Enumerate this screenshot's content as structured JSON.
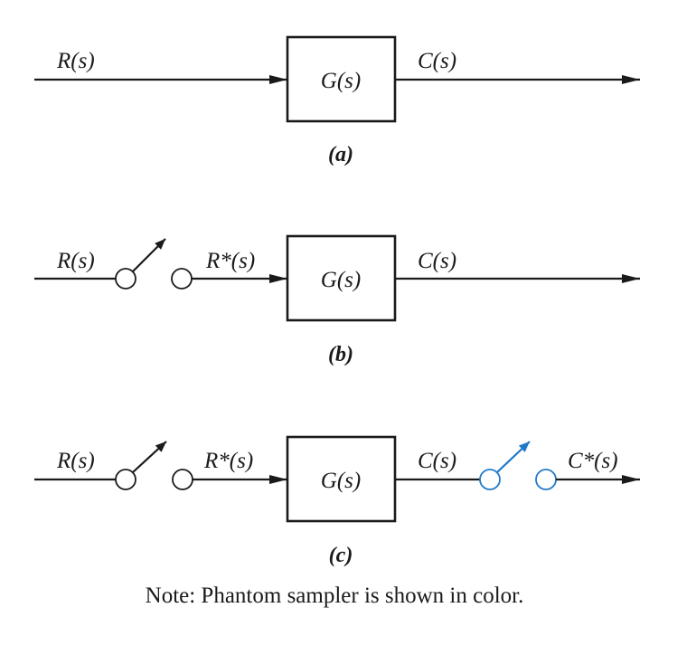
{
  "diagram_a": {
    "input_label": "R(s)",
    "block_label": "G(s)",
    "output_label": "C(s)",
    "caption": "(a)"
  },
  "diagram_b": {
    "input_label": "R(s)",
    "sampled_input_label": "R*(s)",
    "block_label": "G(s)",
    "output_label": "C(s)",
    "caption": "(b)"
  },
  "diagram_c": {
    "input_label": "R(s)",
    "sampled_input_label": "R*(s)",
    "block_label": "G(s)",
    "output_label": "C(s)",
    "sampled_output_label": "C*(s)",
    "caption": "(c)"
  },
  "note": "Note:  Phantom sampler is shown in color.",
  "colors": {
    "line": "#1a1a1a",
    "phantom_sampler": "#1f78c8"
  }
}
